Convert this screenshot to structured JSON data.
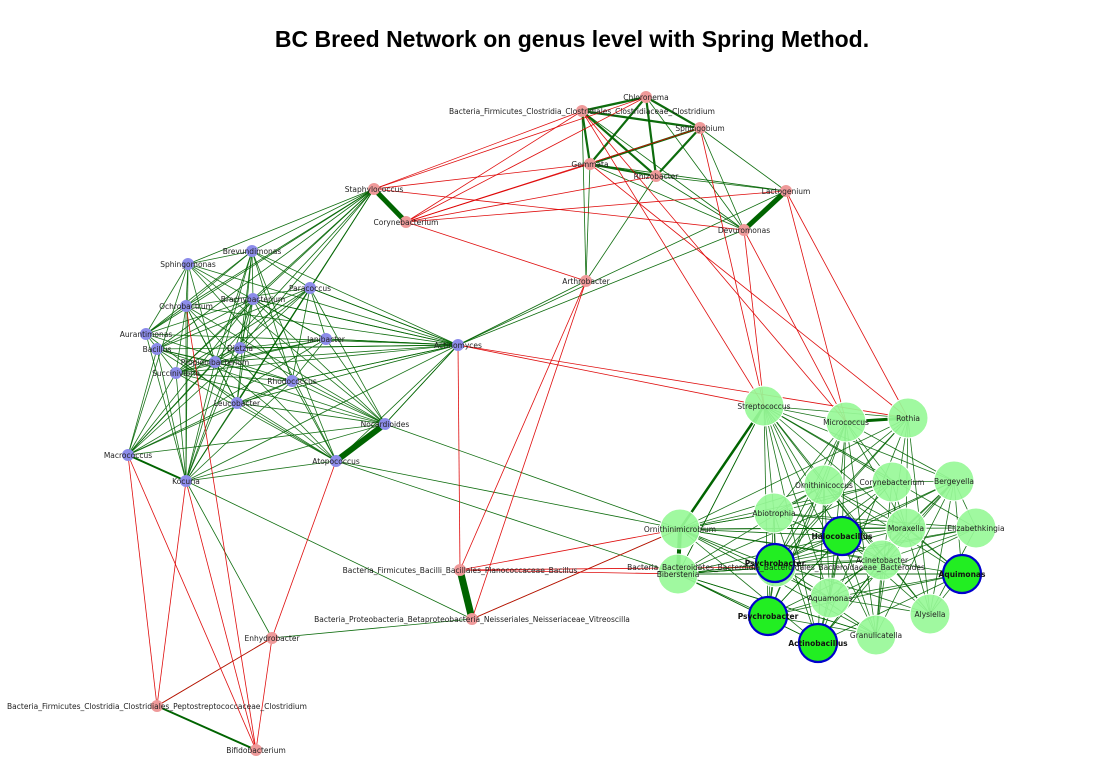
{
  "title": "BC Breed Network on genus level with Spring Method.",
  "colors": {
    "red_module": "#ef9a9a",
    "blue_module": "#8c8cea",
    "green_module": "#98f898",
    "hub_fill": "#22ee22",
    "hub_border": "#0000cc",
    "positive_edge": "#006400",
    "negative_edge": "#dd0000"
  },
  "nodes": [
    {
      "id": "chloronema",
      "label": "Chloronema",
      "group": "red"
    },
    {
      "id": "bfcc_clos",
      "label": "Bacteria_Firmicutes_Clostridia_Clostridiales_Clostridiaceae_Clostridium",
      "group": "red"
    },
    {
      "id": "sphingobium",
      "label": "Sphingobium",
      "group": "red"
    },
    {
      "id": "gemmata",
      "label": "Gemmata",
      "group": "red"
    },
    {
      "id": "rhizobacter",
      "label": "Rhizobacter",
      "group": "red"
    },
    {
      "id": "lactogenium",
      "label": "Lactogenium",
      "group": "red"
    },
    {
      "id": "staphylococcus",
      "label": "Staphylococcus",
      "group": "red"
    },
    {
      "id": "corynebacterium",
      "label": "Corynebacterium",
      "group": "red"
    },
    {
      "id": "devuromonas",
      "label": "Devuromonas",
      "group": "red"
    },
    {
      "id": "arthrobacter",
      "label": "Arthrobacter",
      "group": "red"
    },
    {
      "id": "bfbb_bacillus",
      "label": "Bacteria_Firmicutes_Bacilli_Bacillales_Planococcaceae_Bacillus",
      "group": "red"
    },
    {
      "id": "bpbn_vitreo",
      "label": "Bacteria_Proteobacteria_Betaproteobacteria_Neisseriales_Neisseriaceae_Vitreoscilla",
      "group": "red"
    },
    {
      "id": "enhydrobacter",
      "label": "Enhydrobacter",
      "group": "red"
    },
    {
      "id": "bfcc_pepto",
      "label": "Bacteria_Firmicutes_Clostridia_Clostridiales_Peptostreptococcaceae_Clostridium",
      "group": "red"
    },
    {
      "id": "bifidobacterium",
      "label": "Bifidobacterium",
      "group": "red"
    },
    {
      "id": "sphingomonas",
      "label": "Sphingomonas",
      "group": "blue"
    },
    {
      "id": "brevundimonas",
      "label": "Brevundimonas",
      "group": "blue"
    },
    {
      "id": "ochrobactrum",
      "label": "Ochrobactrum",
      "group": "blue"
    },
    {
      "id": "b_blue1",
      "label": "Brachybacterium",
      "group": "blue"
    },
    {
      "id": "b_blue2",
      "label": "Paracoccus",
      "group": "blue"
    },
    {
      "id": "aurantimonas",
      "label": "Aurantimonas",
      "group": "blue"
    },
    {
      "id": "bacillus_blue",
      "label": "Bacillus",
      "group": "blue"
    },
    {
      "id": "b_blue3",
      "label": "Dietzia",
      "group": "blue"
    },
    {
      "id": "b_blue4",
      "label": "Janibacter",
      "group": "blue"
    },
    {
      "id": "b_blue5",
      "label": "Propionibacterium",
      "group": "blue"
    },
    {
      "id": "succinivibrio",
      "label": "Succinivibrio",
      "group": "blue"
    },
    {
      "id": "b_blue6",
      "label": "Rhodococcus",
      "group": "blue"
    },
    {
      "id": "leucobacter",
      "label": "Leucobacter",
      "group": "blue"
    },
    {
      "id": "actinomyces",
      "label": "Actinomyces",
      "group": "blue"
    },
    {
      "id": "nocardioides",
      "label": "Nocardioides",
      "group": "blue"
    },
    {
      "id": "atopococcus",
      "label": "Atopococcus",
      "group": "blue"
    },
    {
      "id": "macrococcus",
      "label": "Macrococcus",
      "group": "blue"
    },
    {
      "id": "kocuria",
      "label": "Kocuria",
      "group": "blue"
    },
    {
      "id": "streptococcus",
      "label": "Streptococcus",
      "group": "green"
    },
    {
      "id": "micrococcus",
      "label": "Micrococcus",
      "group": "green"
    },
    {
      "id": "rothia",
      "label": "Rothia",
      "group": "green"
    },
    {
      "id": "ornithinicoccus",
      "label": "Ornithinicoccus",
      "group": "green"
    },
    {
      "id": "corynebacterium_g",
      "label": "Corynebacterium",
      "group": "green"
    },
    {
      "id": "bergeyella",
      "label": "Bergeyella",
      "group": "green"
    },
    {
      "id": "abiotrophia",
      "label": "Abiotrophia",
      "group": "green"
    },
    {
      "id": "halocobacillus",
      "label": "Halocobacillus",
      "group": "hub"
    },
    {
      "id": "g_mid",
      "label": "Moraxella",
      "group": "green"
    },
    {
      "id": "elizabethkingia",
      "label": "Elizabethkingia",
      "group": "green"
    },
    {
      "id": "ornithinimicrobium",
      "label": "Ornithinimicrobium",
      "group": "green"
    },
    {
      "id": "bbbb_bact",
      "label": "Bacteria_Bacteroidetes_Bacteroidia_Bacteroidales_Bacteroidaceae_Bacteroides",
      "group": "green"
    },
    {
      "id": "biberstenia",
      "label": "Biberstenia",
      "group": "green"
    },
    {
      "id": "hub1",
      "label": "Psychrobacter",
      "group": "hub"
    },
    {
      "id": "acinetobacter",
      "label": "Acinetobacter",
      "group": "green"
    },
    {
      "id": "aquamonas",
      "label": "Aquamonas",
      "group": "green"
    },
    {
      "id": "aquimonas",
      "label": "Aquimonas",
      "group": "hub"
    },
    {
      "id": "psychrobacter",
      "label": "Psychrobacter",
      "group": "hub"
    },
    {
      "id": "actinobacillus",
      "label": "Actinobacillus",
      "group": "hub"
    },
    {
      "id": "alysiella",
      "label": "Alysiella",
      "group": "green"
    },
    {
      "id": "granulicatella",
      "label": "Granulicatella",
      "group": "green"
    }
  ]
}
